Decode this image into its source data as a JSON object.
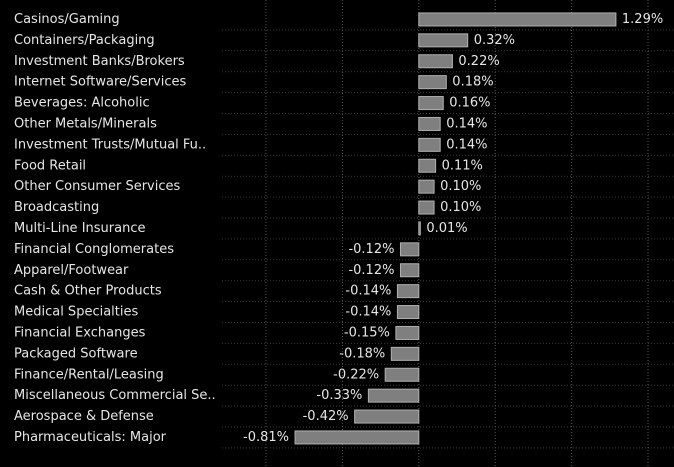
{
  "chart_data": {
    "type": "barh",
    "categories": [
      "Casinos/Gaming",
      "Containers/Packaging",
      "Investment Banks/Brokers",
      "Internet Software/Services",
      "Beverages: Alcoholic",
      "Other Metals/Minerals",
      "Investment Trusts/Mutual Fu..",
      "Food Retail",
      "Other Consumer Services",
      "Broadcasting",
      "Multi-Line Insurance",
      "Financial Conglomerates",
      "Apparel/Footwear",
      "Cash & Other Products",
      "Medical Specialties",
      "Financial Exchanges",
      "Packaged Software",
      "Finance/Rental/Leasing",
      "Miscellaneous Commercial Se..",
      "Aerospace & Defense",
      "Pharmaceuticals: Major"
    ],
    "values": [
      1.29,
      0.32,
      0.22,
      0.18,
      0.16,
      0.14,
      0.14,
      0.11,
      0.1,
      0.1,
      0.01,
      -0.12,
      -0.12,
      -0.14,
      -0.14,
      -0.15,
      -0.18,
      -0.22,
      -0.33,
      -0.42,
      -0.81
    ],
    "value_labels": [
      "1.29%",
      "0.32%",
      "0.22%",
      "0.18%",
      "0.16%",
      "0.14%",
      "0.14%",
      "0.11%",
      "0.10%",
      "0.10%",
      "0.01%",
      "-0.12%",
      "-0.12%",
      "-0.14%",
      "-0.14%",
      "-0.15%",
      "-0.18%",
      "-0.22%",
      "-0.33%",
      "-0.42%",
      "-0.81%"
    ],
    "color": "#7f7f7f",
    "xlim": [
      -1.0,
      1.5
    ],
    "xticks": [
      -1.0,
      -0.5,
      0,
      0.5,
      1.0,
      1.5
    ],
    "grid": true
  }
}
